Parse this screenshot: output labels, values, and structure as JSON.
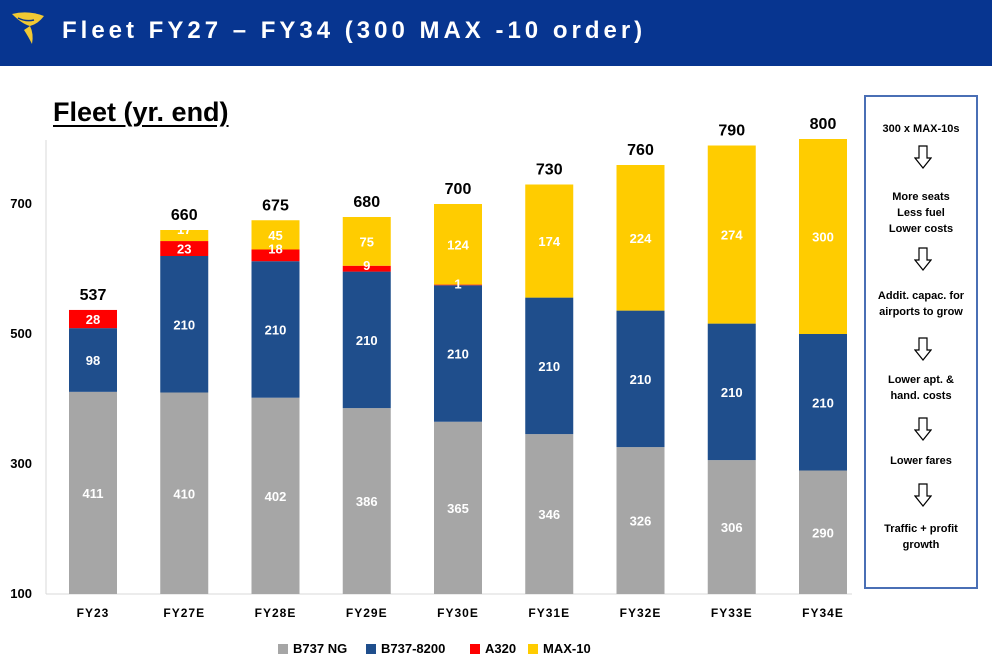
{
  "header": {
    "title": "Fleet FY27 – FY34 (300 MAX -10 order)"
  },
  "logo_icon": "harp-logo-icon",
  "chart_data": {
    "type": "bar",
    "stacked": true,
    "title": "Fleet (yr. end)",
    "categories": [
      "FY23",
      "FY27E",
      "FY28E",
      "FY29E",
      "FY30E",
      "FY31E",
      "FY32E",
      "FY33E",
      "FY34E"
    ],
    "series": [
      {
        "name": "B737 NG",
        "color": "#a6a6a6",
        "values": [
          411,
          410,
          402,
          386,
          365,
          346,
          326,
          306,
          290
        ]
      },
      {
        "name": "B737-8200",
        "color": "#1f4e8c",
        "values": [
          98,
          210,
          210,
          210,
          210,
          210,
          210,
          210,
          210
        ]
      },
      {
        "name": "A320",
        "color": "#ff0000",
        "values": [
          28,
          23,
          18,
          9,
          1,
          null,
          null,
          null,
          null
        ]
      },
      {
        "name": "MAX-10",
        "color": "#ffcc00",
        "values": [
          null,
          17,
          45,
          75,
          124,
          174,
          224,
          274,
          300
        ]
      }
    ],
    "totals": [
      "537",
      "660",
      "675",
      "680",
      "700",
      "730",
      "760",
      "790",
      "800"
    ],
    "yticks": [
      "100",
      "300",
      "500",
      "700"
    ],
    "ylim": [
      100,
      800
    ],
    "grid": false,
    "legend_position": "bottom"
  },
  "side_panel": {
    "steps": [
      [
        "300 x MAX-10s"
      ],
      [
        "More seats",
        "Less fuel",
        "Lower costs"
      ],
      [
        "Addit. capac. for",
        "airports to grow"
      ],
      [
        "Lower apt. &",
        "hand. costs"
      ],
      [
        "Lower fares"
      ],
      [
        "Traffic + profit",
        "growth"
      ]
    ],
    "arrow_icon": "down-arrow-icon"
  }
}
